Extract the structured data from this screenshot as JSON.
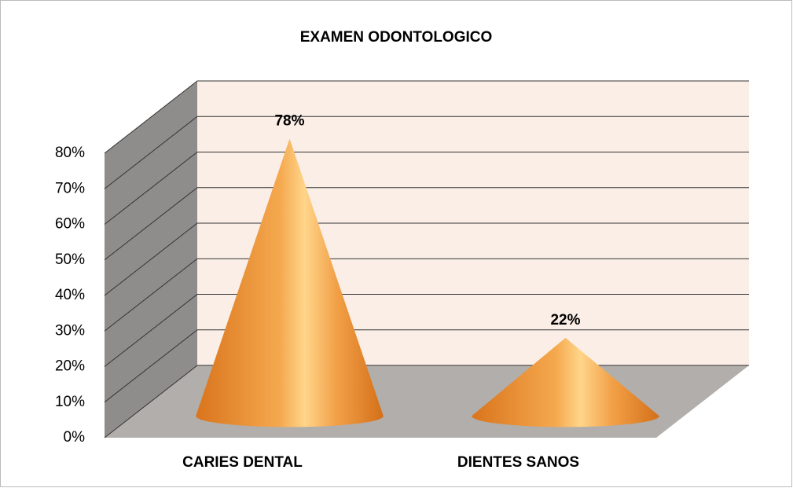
{
  "chart_data": {
    "type": "cone",
    "title": "EXAMEN ODONTOLOGICO",
    "categories": [
      "CARIES DENTAL",
      "DIENTES SANOS"
    ],
    "values": [
      78,
      22
    ],
    "value_labels": [
      "78%",
      "22%"
    ],
    "color": "#f0a040",
    "ylim": [
      0,
      80
    ],
    "yticks": [
      {
        "value": 0,
        "label": "0%"
      },
      {
        "value": 10,
        "label": "10%"
      },
      {
        "value": 20,
        "label": "20%"
      },
      {
        "value": 30,
        "label": "30%"
      },
      {
        "value": 40,
        "label": "40%"
      },
      {
        "value": 50,
        "label": "50%"
      },
      {
        "value": 60,
        "label": "60%"
      },
      {
        "value": 70,
        "label": "70%"
      },
      {
        "value": 80,
        "label": "80%"
      }
    ],
    "grid": true
  }
}
